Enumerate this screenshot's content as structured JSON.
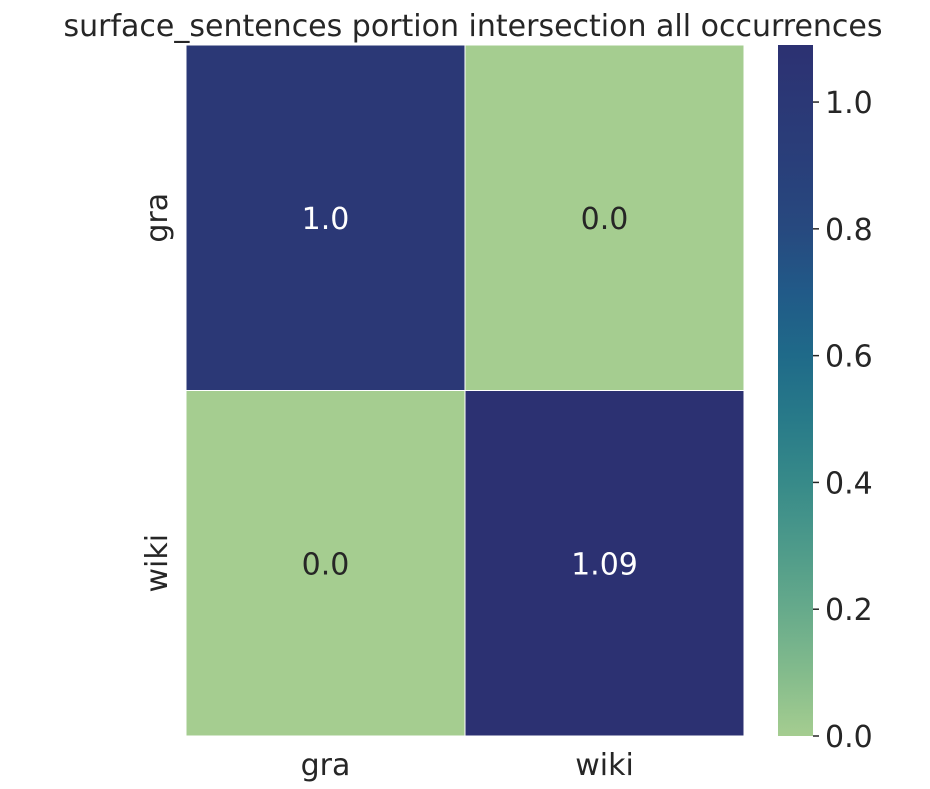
{
  "chart_data": {
    "type": "heatmap",
    "title": "surface_sentences portion intersection all occurrences",
    "x_categories": [
      "gra",
      "wiki"
    ],
    "y_categories": [
      "gra",
      "wiki"
    ],
    "values": [
      [
        1.0,
        0.0
      ],
      [
        0.0,
        1.09
      ]
    ],
    "cell_labels": [
      [
        "1.0",
        "0.0"
      ],
      [
        "0.0",
        "1.09"
      ]
    ],
    "colorbar": {
      "min": 0.0,
      "max": 1.09,
      "ticks": [
        0.0,
        0.2,
        0.4,
        0.6,
        0.8,
        1.0
      ],
      "tick_labels": [
        "0.0",
        "0.2",
        "0.4",
        "0.6",
        "0.8",
        "1.0"
      ]
    },
    "colormap": "crest",
    "colors": {
      "low": "#a5cd90",
      "high": "#2c3172",
      "cell_border": "#ffffff"
    },
    "annotation_colors": {
      "on_dark": "#ffffff",
      "on_light": "#262626"
    }
  }
}
